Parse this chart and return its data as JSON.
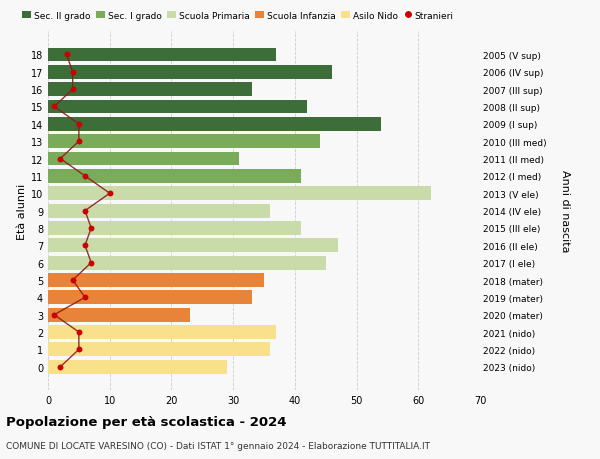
{
  "ages": [
    0,
    1,
    2,
    3,
    4,
    5,
    6,
    7,
    8,
    9,
    10,
    11,
    12,
    13,
    14,
    15,
    16,
    17,
    18
  ],
  "years": [
    "2023 (nido)",
    "2022 (nido)",
    "2021 (nido)",
    "2020 (mater)",
    "2019 (mater)",
    "2018 (mater)",
    "2017 (I ele)",
    "2016 (II ele)",
    "2015 (III ele)",
    "2014 (IV ele)",
    "2013 (V ele)",
    "2012 (I med)",
    "2011 (II med)",
    "2010 (III med)",
    "2009 (I sup)",
    "2008 (II sup)",
    "2007 (III sup)",
    "2006 (IV sup)",
    "2005 (V sup)"
  ],
  "bar_values": [
    29,
    36,
    37,
    23,
    33,
    35,
    45,
    47,
    41,
    36,
    62,
    41,
    31,
    44,
    54,
    42,
    33,
    46,
    37
  ],
  "bar_colors": [
    "#f9e08b",
    "#f9e08b",
    "#f9e08b",
    "#e8843a",
    "#e8843a",
    "#e8843a",
    "#c8dba8",
    "#c8dba8",
    "#c8dba8",
    "#c8dba8",
    "#c8dba8",
    "#7aab5a",
    "#7aab5a",
    "#7aab5a",
    "#3d6e3a",
    "#3d6e3a",
    "#3d6e3a",
    "#3d6e3a",
    "#3d6e3a"
  ],
  "stranieri_values": [
    2,
    5,
    5,
    1,
    6,
    4,
    7,
    6,
    7,
    6,
    10,
    6,
    2,
    5,
    5,
    1,
    4,
    4,
    3
  ],
  "legend_labels": [
    "Sec. II grado",
    "Sec. I grado",
    "Scuola Primaria",
    "Scuola Infanzia",
    "Asilo Nido",
    "Stranieri"
  ],
  "legend_colors": [
    "#3d6e3a",
    "#7aab5a",
    "#c8dba8",
    "#e8843a",
    "#f9e08b",
    "#cc0000"
  ],
  "ylabel": "Età alunni",
  "right_ylabel": "Anni di nascita",
  "title": "Popolazione per età scolastica - 2024",
  "subtitle": "COMUNE DI LOCATE VARESINO (CO) - Dati ISTAT 1° gennaio 2024 - Elaborazione TUTTITALIA.IT",
  "xlim": [
    0,
    70
  ],
  "xticks": [
    0,
    10,
    20,
    30,
    40,
    50,
    60,
    70
  ],
  "background_color": "#f8f8f8",
  "grid_color": "#cccccc"
}
